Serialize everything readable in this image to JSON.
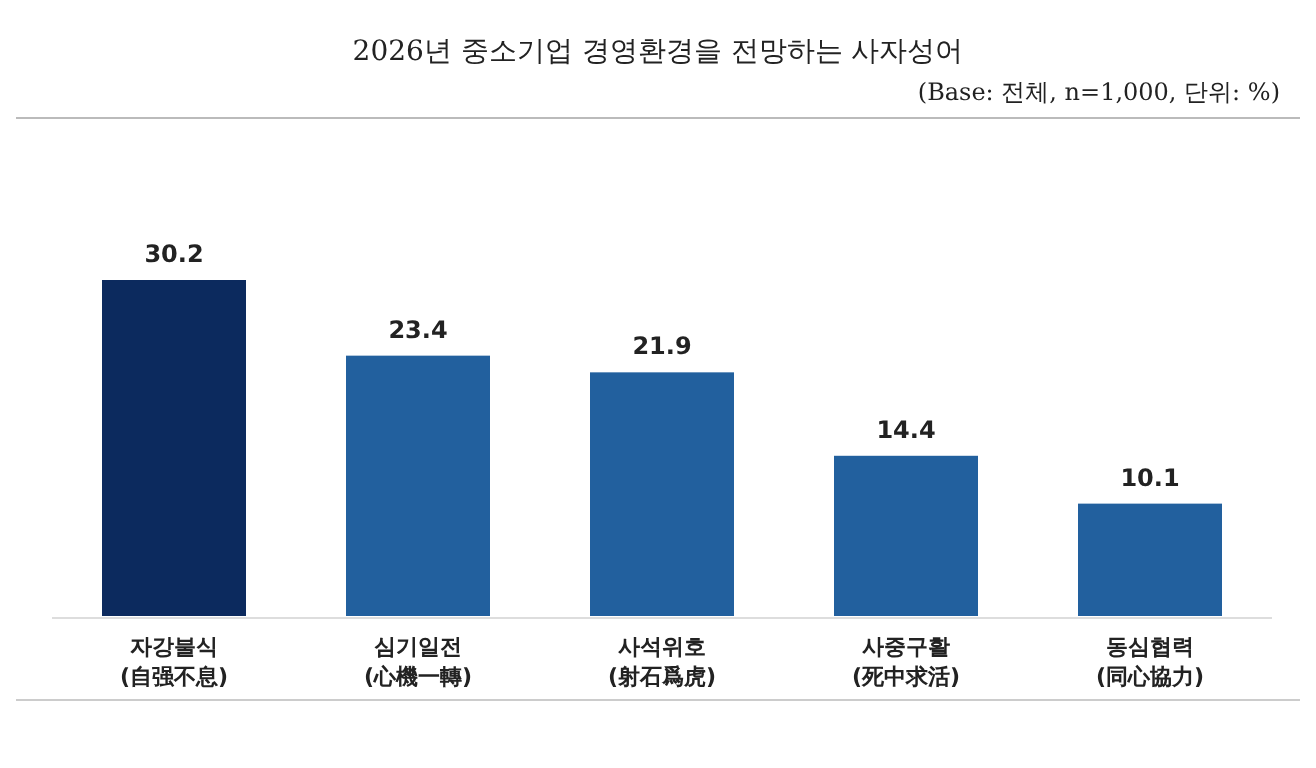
{
  "chart_data": {
    "type": "bar",
    "title": "2026년 중소기업 경영환경을 전망하는 사자성어",
    "subtitle": "(Base: 전체, n=1,000, 단위: %)",
    "categories": [
      "자강불식 (自强不息)",
      "심기일전 (心機一轉)",
      "사석위호 (射石爲虎)",
      "사중구활 (死中求活)",
      "동심협력 (同心協力)"
    ],
    "values": [
      30.2,
      23.4,
      21.9,
      14.4,
      10.1
    ],
    "colors": [
      "#0c2a5e",
      "#22609e",
      "#22609e",
      "#22609e",
      "#22609e"
    ],
    "data_labels": true
  }
}
